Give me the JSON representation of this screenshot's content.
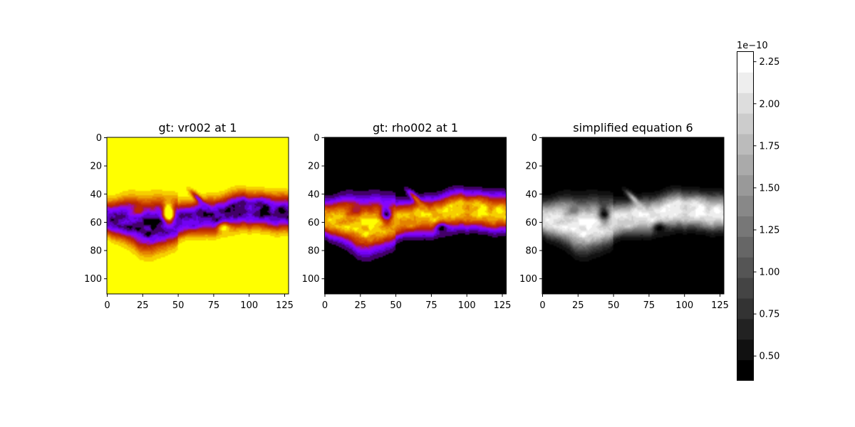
{
  "figure": {
    "background": "#ffffff"
  },
  "chart_data": [
    {
      "type": "heatmap",
      "title": "gt: vr002 at 1",
      "colormap": "gnuplot",
      "x_ticks": [
        0,
        25,
        50,
        75,
        100,
        125
      ],
      "y_ticks": [
        0,
        20,
        40,
        60,
        80,
        100
      ],
      "xlim": [
        0,
        128
      ],
      "ylim": [
        111,
        0
      ],
      "grid": false,
      "band_polarity": "low"
    },
    {
      "type": "heatmap",
      "title": "gt: rho002 at 1",
      "colormap": "gnuplot",
      "x_ticks": [
        0,
        25,
        50,
        75,
        100,
        125
      ],
      "y_ticks": [
        0,
        20,
        40,
        60,
        80,
        100
      ],
      "xlim": [
        0,
        128
      ],
      "ylim": [
        111,
        0
      ],
      "grid": false,
      "band_polarity": "high"
    },
    {
      "type": "heatmap",
      "title": "simplified equation 6",
      "colormap": "gray",
      "x_ticks": [
        0,
        25,
        50,
        75,
        100,
        125
      ],
      "y_ticks": [
        0,
        20,
        40,
        60,
        80,
        100
      ],
      "xlim": [
        0,
        128
      ],
      "ylim": [
        111,
        0
      ],
      "grid": false,
      "band_polarity": "high"
    }
  ],
  "colorbar": {
    "colormap": "gray",
    "scale_label": "1e−10",
    "ticks": [
      "0.50",
      "0.75",
      "1.00",
      "1.25",
      "1.50",
      "1.75",
      "2.00",
      "2.25"
    ],
    "tick_values": [
      0.5,
      0.75,
      1.0,
      1.25,
      1.5,
      1.75,
      2.0,
      2.25
    ],
    "range": [
      0.355,
      2.31
    ],
    "levels": 16
  }
}
